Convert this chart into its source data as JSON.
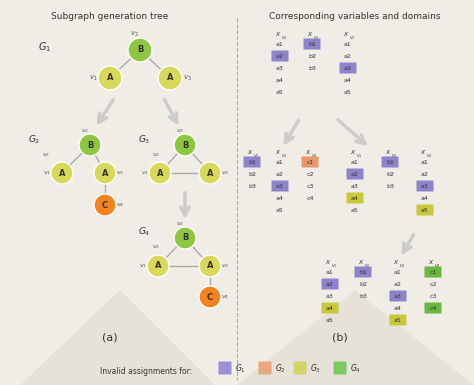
{
  "title_left": "Subgraph generation tree",
  "title_right": "Corresponding variables and domains",
  "label_a": "(a)",
  "label_b": "(b)",
  "bg_color": "#f0ede6",
  "node_B_green": "#8dc63f",
  "node_A_yellow": "#d8d85a",
  "node_C_orange": "#f4821e",
  "c_purple": "#8e84cc",
  "c_orange": "#e8956a",
  "c_yellow": "#c8c83a",
  "c_green": "#6ab840",
  "legend_colors": [
    "#9b8fd6",
    "#e8a87c",
    "#d4d46a",
    "#7bc95e"
  ],
  "legend_labels": [
    "G_1",
    "G_2",
    "G_3",
    "G_4"
  ]
}
